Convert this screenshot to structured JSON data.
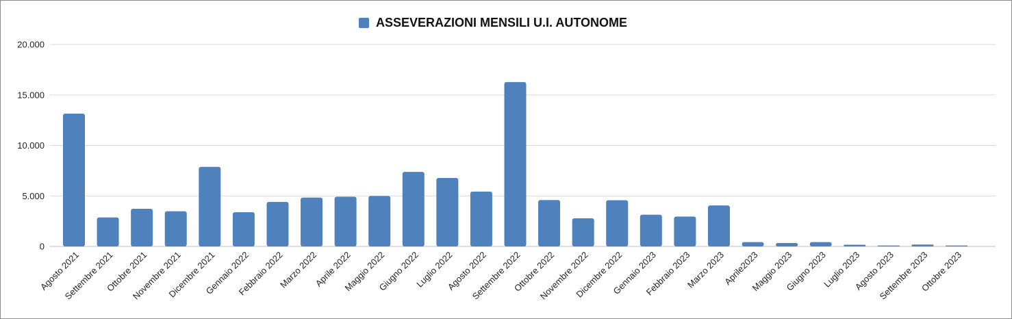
{
  "chart_data": {
    "type": "bar",
    "legend_position": "top-center",
    "grid": true,
    "bar_color": "#4f81bd",
    "series": [
      {
        "name": "ASSEVERAZIONI MENSILI U.I. AUTONOME",
        "values": [
          13150,
          2870,
          3730,
          3480,
          7880,
          3390,
          4410,
          4840,
          4920,
          5000,
          7380,
          6780,
          5430,
          16280,
          4590,
          2790,
          4580,
          3140,
          2960,
          4060,
          430,
          340,
          430,
          170,
          90,
          190,
          90
        ]
      }
    ],
    "categories": [
      "Agosto 2021",
      "Settembre 2021",
      "Ottobre 2021",
      "Novembre 2021",
      "Dicembre 2021",
      "Gennaio 2022",
      "Febbraio 2022",
      "Marzo 2022",
      "Aprile 2022",
      "Maggio 2022",
      "Giugno 2022",
      "Luglio 2022",
      "Agosto 2022",
      "Settembre 2022",
      "Ottobre 2022",
      "Novembre 2022",
      "Dicembre 2022",
      "Gennaio 2023",
      "Febbraio 2023",
      "Marzo 2023",
      "Aprile2023",
      "Maggio 2023",
      "Giugno 2023",
      "Luglio 2023",
      "Agosto 2023",
      "Settembre 2023",
      "Ottobre 2023"
    ],
    "ylim": [
      0,
      20000
    ],
    "yticks": [
      0,
      5000,
      10000,
      15000,
      20000
    ],
    "ytick_labels": [
      "0",
      "5.000",
      "10.000",
      "15.000",
      "20.000"
    ]
  }
}
